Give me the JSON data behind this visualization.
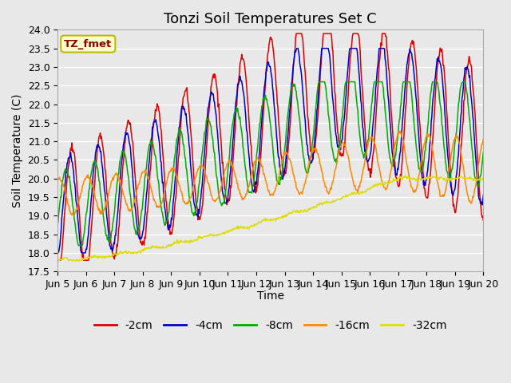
{
  "title": "Tonzi Soil Temperatures Set C",
  "xlabel": "Time",
  "ylabel": "Soil Temperature (C)",
  "ylim": [
    17.5,
    24.0
  ],
  "yticks": [
    17.5,
    18.0,
    18.5,
    19.0,
    19.5,
    20.0,
    20.5,
    21.0,
    21.5,
    22.0,
    22.5,
    23.0,
    23.5,
    24.0
  ],
  "xtick_labels": [
    "Jun 5",
    "Jun 6",
    "Jun 7",
    "Jun 8",
    "Jun 9",
    "Jun 10",
    "Jun 11",
    "Jun 12",
    "Jun 13",
    "Jun 14",
    "Jun 15",
    "Jun 16",
    "Jun 17",
    "Jun 18",
    "Jun 19",
    "Jun 20"
  ],
  "series_colors": [
    "#dd0000",
    "#0000cc",
    "#00aa00",
    "#ff8800",
    "#dddd00"
  ],
  "series_labels": [
    "-2cm",
    "-4cm",
    "-8cm",
    "-16cm",
    "-32cm"
  ],
  "annotation_text": "TZ_fmet",
  "background_color": "#e8e8e8",
  "plot_bg_color": "#e8e8e8",
  "grid_color": "#ffffff",
  "title_fontsize": 13,
  "label_fontsize": 10,
  "tick_fontsize": 9,
  "legend_fontsize": 10
}
